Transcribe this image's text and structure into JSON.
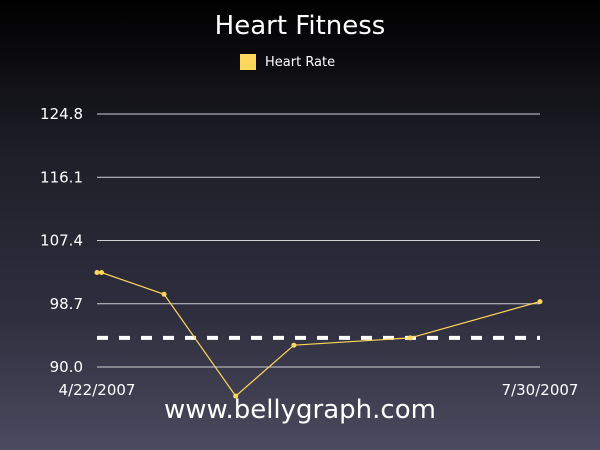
{
  "chart_data": {
    "type": "line",
    "title": "Heart Fitness",
    "legend": {
      "placement": "top-center",
      "entries": [
        {
          "label": "Heart Rate",
          "color": "#ffd75a"
        }
      ]
    },
    "x_axis": {
      "type": "date",
      "range": [
        "2007-04-22",
        "2007-07-30"
      ],
      "tick_labels": [
        "4/22/2007",
        "7/30/2007"
      ]
    },
    "y_axis": {
      "range": [
        90.0,
        124.8
      ],
      "tick_labels": [
        "90.0",
        "98.7",
        "107.4",
        "116.1",
        "124.8"
      ],
      "ticks": [
        90.0,
        98.7,
        107.4,
        116.1,
        124.8
      ]
    },
    "grid": true,
    "series": [
      {
        "name": "Heart Rate",
        "color": "#ffd75a",
        "points": [
          {
            "x": "2007-04-22",
            "y": 103.0
          },
          {
            "x": "2007-04-23",
            "y": 103.0
          },
          {
            "x": "2007-05-07",
            "y": 100.0
          },
          {
            "x": "2007-05-23",
            "y": 86.0
          },
          {
            "x": "2007-06-05",
            "y": 93.0
          },
          {
            "x": "2007-07-01",
            "y": 94.0
          },
          {
            "x": "2007-07-30",
            "y": 99.0
          }
        ]
      }
    ],
    "reference_line": {
      "y": 94.0,
      "style": "dashed",
      "color": "#ffffff"
    }
  },
  "watermark": "www.bellygraph.com"
}
